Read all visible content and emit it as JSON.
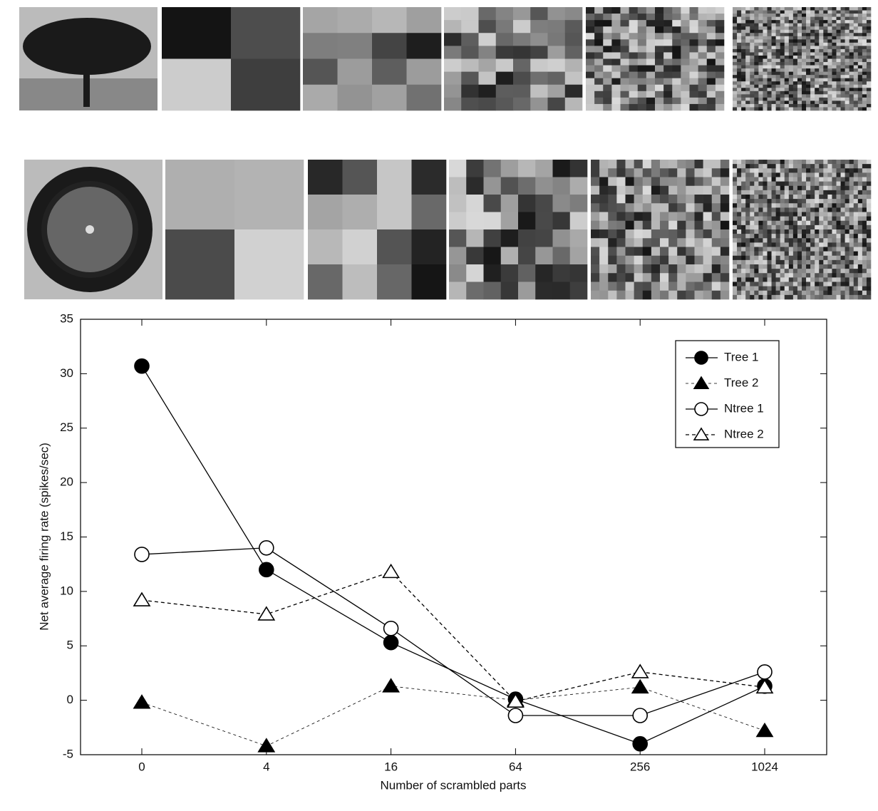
{
  "chart_data": {
    "type": "line",
    "x_label": "Number of scrambled parts",
    "y_label": "Net average firing rate (spikes/sec)",
    "categories": [
      "0",
      "4",
      "16",
      "64",
      "256",
      "1024"
    ],
    "ylim": [
      -5,
      35
    ],
    "yticks": [
      -5,
      0,
      5,
      10,
      15,
      20,
      25,
      30,
      35
    ],
    "legend": "upper right",
    "series": [
      {
        "name": "Tree 1",
        "color": "#000000",
        "marker": "circle",
        "filled": true,
        "dash": "solid",
        "values": [
          30.7,
          12,
          5.3,
          0.1,
          -4,
          1.3
        ]
      },
      {
        "name": "Tree 2",
        "color": "#000000",
        "marker": "triangle",
        "filled": true,
        "dash": "dashed-thin",
        "values": [
          -0.2,
          -4.2,
          1.3,
          0,
          1.2,
          -2.8
        ]
      },
      {
        "name": "Ntree 1",
        "color": "#000000",
        "marker": "circle",
        "filled": false,
        "dash": "solid",
        "values": [
          13.4,
          14,
          6.6,
          -1.4,
          -1.4,
          2.6
        ]
      },
      {
        "name": "Ntree 2",
        "color": "#000000",
        "marker": "triangle",
        "filled": false,
        "dash": "dashed",
        "values": [
          9.2,
          7.9,
          11.8,
          -0.1,
          2.6,
          1.2
        ]
      }
    ]
  }
}
